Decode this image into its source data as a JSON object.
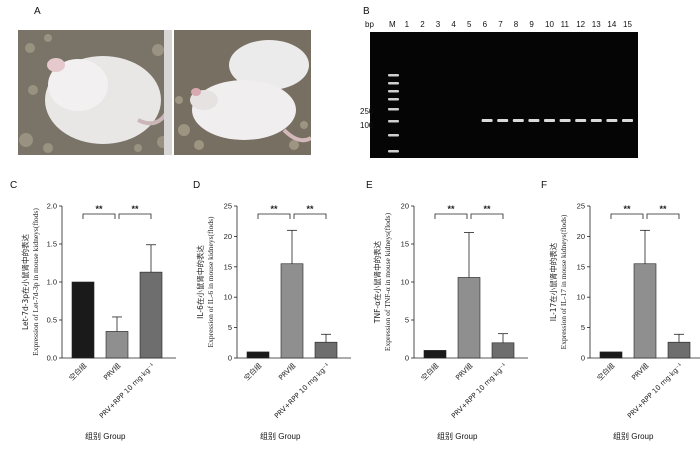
{
  "panels": {
    "a": "A",
    "b": "B",
    "c": "C",
    "d": "D",
    "e": "E",
    "f": "F"
  },
  "gel": {
    "bp_label": "bp",
    "lanes": [
      "M",
      "1",
      "2",
      "3",
      "4",
      "5",
      "6",
      "7",
      "8",
      "9",
      "10",
      "11",
      "12",
      "13",
      "14",
      "15"
    ],
    "markers": [
      "250",
      "100"
    ],
    "band_lanes": [
      "6",
      "7",
      "8",
      "9",
      "10",
      "11",
      "12",
      "13",
      "14",
      "15"
    ]
  },
  "colors": {
    "bar_control": "#1a1a1a",
    "bar_prv": "#8f8f8f",
    "bar_prv_rpp": "#6e6e6e",
    "gel_band": "#f2f2f2"
  },
  "chart_data": [
    {
      "type": "bar",
      "panel": "C",
      "categories": [
        "空白组",
        "PRV组",
        "PRV+RPP 10 mg·kg⁻¹"
      ],
      "values": [
        1.0,
        0.35,
        1.13
      ],
      "errors": [
        0,
        0.19,
        0.36
      ],
      "ylabel_cn": "Let-7d-3p在小鼠肾中的表达",
      "ylabel_en": "Expression of Let-7d-3p in mouse kidneys(flods)",
      "xlabel": "组别 Group",
      "ylim": [
        0.0,
        2.0
      ],
      "yticks": [
        "0.0",
        "0.5",
        "1.0",
        "1.5",
        "2.0"
      ],
      "significance": [
        "**",
        "**"
      ]
    },
    {
      "type": "bar",
      "panel": "D",
      "categories": [
        "空白组",
        "PRV组",
        "PRV+RPP 10 mg·kg⁻¹"
      ],
      "values": [
        1.0,
        15.5,
        2.6
      ],
      "errors": [
        0,
        5.5,
        1.3
      ],
      "ylabel_cn": "IL-6在小鼠肾中的表达",
      "ylabel_en": "Expression of IL-6 in mouse kidneys(flods)",
      "xlabel": "组别 Group",
      "ylim": [
        0,
        25
      ],
      "yticks": [
        "0",
        "5",
        "10",
        "15",
        "20",
        "25"
      ],
      "significance": [
        "**",
        "**"
      ]
    },
    {
      "type": "bar",
      "panel": "E",
      "categories": [
        "空白组",
        "PRV组",
        "PRV+RPP 10 mg·kg⁻¹"
      ],
      "values": [
        1.0,
        10.6,
        2.0
      ],
      "errors": [
        0,
        5.9,
        1.2
      ],
      "ylabel_cn": "TNF-α在小鼠肾中的表达",
      "ylabel_en": "Expression of TNF-α in mouse kidneys(flods)",
      "xlabel": "组别 Group",
      "ylim": [
        0,
        20
      ],
      "yticks": [
        "0",
        "5",
        "10",
        "15",
        "20"
      ],
      "significance": [
        "**",
        "**"
      ]
    },
    {
      "type": "bar",
      "panel": "F",
      "categories": [
        "空白组",
        "PRV组",
        "PRV+RPP 10 mg·kg⁻¹"
      ],
      "values": [
        1.0,
        15.5,
        2.6
      ],
      "errors": [
        0,
        5.5,
        1.3
      ],
      "ylabel_cn": "IL-17在小鼠肾中的表达",
      "ylabel_en": "Expression of IL-17 in mouse kidneys(flods)",
      "xlabel": "组别 Group",
      "ylim": [
        0,
        25
      ],
      "yticks": [
        "0",
        "5",
        "10",
        "15",
        "20",
        "25"
      ],
      "significance": [
        "**",
        "**"
      ]
    }
  ]
}
